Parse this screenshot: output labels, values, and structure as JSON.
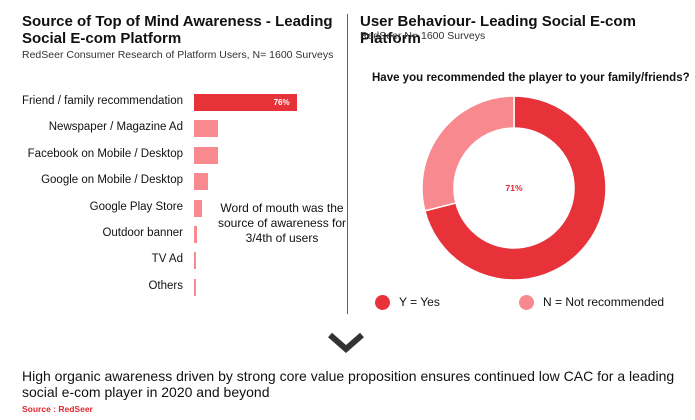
{
  "left_panel": {
    "title": "Source of Top of Mind Awareness - Leading Social E-com Platform",
    "subtitle": "RedSeer Consumer Research of Platform Users, N= 1600 Surveys",
    "annotation": "Word of mouth was the source of awareness for 3/4th of users"
  },
  "right_panel": {
    "title": "User Behaviour- Leading Social E-com Platform",
    "subtitle": "RedSeer N= 1600 Surveys",
    "question": "Have you recommended the player to your family/friends?",
    "center_label": "71%",
    "legend": [
      "Y = Yes",
      "N = Not recommended"
    ]
  },
  "conclusion": "High organic awareness driven by strong core value proposition ensures continued low CAC for a leading social e-com player in 2020 and beyond",
  "source": "Source : RedSeer",
  "colors": {
    "primary": "#e8323a",
    "secondary": "#f8898e",
    "accent": "#e0262e"
  },
  "icons": {
    "chevron": "chevron-down-icon"
  },
  "chart_data": [
    {
      "type": "bar",
      "orientation": "horizontal",
      "categories": [
        "Friend / family recommendation",
        "Newspaper / Magazine Ad",
        "Facebook on Mobile / Desktop",
        "Google on Mobile / Desktop",
        "Google Play Store",
        "Outdoor banner",
        "TV Ad",
        "Others"
      ],
      "values": [
        76,
        18,
        18,
        10,
        6,
        2,
        1,
        1
      ],
      "data_labels": [
        "76%",
        "",
        "",
        "",
        "",
        "",
        "",
        ""
      ],
      "unit": "%",
      "xlim": [
        0,
        100
      ]
    },
    {
      "type": "pie",
      "style": "donut",
      "categories": [
        "Y = Yes",
        "N = Not recommended"
      ],
      "values": [
        71,
        29
      ],
      "unit": "%"
    }
  ]
}
